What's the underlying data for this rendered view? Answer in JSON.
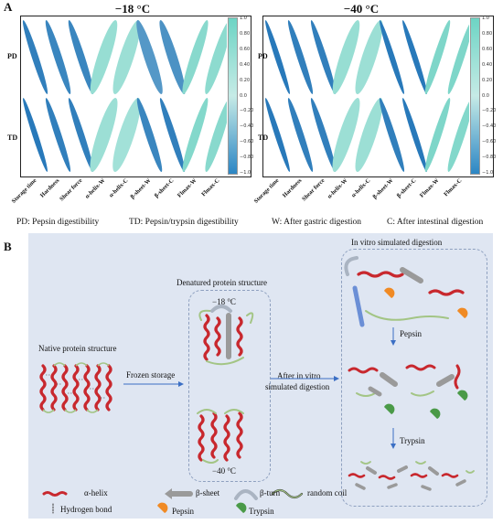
{
  "panel_a": {
    "letter": "A",
    "charts": [
      {
        "title": "−18 °C"
      },
      {
        "title": "−40 °C"
      }
    ],
    "rows": [
      "PD",
      "TD"
    ],
    "columns": [
      "Storage time",
      "Hardness",
      "Shear force",
      "α-helix-W",
      "α-helix-C",
      "β-sheet-W",
      "β-sheet-C",
      "Flmax-W",
      "Flmax-C"
    ],
    "colorbar_ticks": [
      "1.0",
      "0.80",
      "0.60",
      "0.40",
      "0.20",
      "0.0",
      "−0.20",
      "−0.40",
      "−0.60",
      "−0.80",
      "−1.0"
    ],
    "abbreviations": [
      "PD: Pepsin digestibility",
      "TD: Pepsin/trypsin digestibility",
      "W: After gastric digestion",
      "C: After intestinal  digestion"
    ]
  },
  "chart_data": [
    {
      "type": "heatmap",
      "title": "−18 °C",
      "rows": [
        "PD",
        "TD"
      ],
      "columns": [
        "Storage time",
        "Hardness",
        "Shear force",
        "α-helix-W",
        "α-helix-C",
        "β-sheet-W",
        "β-sheet-C",
        "Flmax-W",
        "Flmax-C"
      ],
      "values": [
        [
          -0.9,
          -0.85,
          -0.85,
          0.6,
          0.55,
          -0.7,
          -0.75,
          0.75,
          0.7
        ],
        [
          -0.95,
          -0.9,
          -0.9,
          0.55,
          0.5,
          -0.85,
          -0.9,
          0.8,
          0.75
        ]
      ],
      "colorbar_range": [
        -1.0,
        1.0
      ]
    },
    {
      "type": "heatmap",
      "title": "−40 °C",
      "rows": [
        "PD",
        "TD"
      ],
      "columns": [
        "Storage time",
        "Hardness",
        "Shear force",
        "α-helix-W",
        "α-helix-C",
        "β-sheet-W",
        "β-sheet-C",
        "Flmax-W",
        "Flmax-C"
      ],
      "values": [
        [
          -0.95,
          -0.9,
          -0.9,
          0.6,
          0.55,
          -0.95,
          -0.95,
          0.85,
          0.85
        ],
        [
          -0.95,
          -0.9,
          -0.9,
          0.55,
          0.55,
          -0.9,
          -0.95,
          0.85,
          0.8
        ]
      ],
      "colorbar_range": [
        -1.0,
        1.0
      ]
    }
  ],
  "panel_b": {
    "letter": "B",
    "native": "Native protein structure",
    "frozen": "Frozen storage",
    "denatured": "Denatured protein structure",
    "t18": "−18 °C",
    "t40": "−40 °C",
    "after1": "After in vitro",
    "after2": "simulated digestion",
    "invitro": "In vitro simulated digestion",
    "pepsin": "Pepsin",
    "trypsin": "Trypsin",
    "legend": {
      "helix": "α-helix",
      "sheet": "β-sheet",
      "turn": "β-turn",
      "coil": "random coil",
      "hbond": "Hydrogen bond",
      "pepsin": "Pepsin",
      "trypsin": "Trypsin"
    },
    "colors": {
      "helix": "#c8282e",
      "sheet": "#9a9a9a",
      "turn": "#aab4c2",
      "coil": "#a3c585",
      "pepsin": "#f08a24",
      "trypsin": "#4a9a48",
      "bg": "#dfe6f2"
    }
  }
}
